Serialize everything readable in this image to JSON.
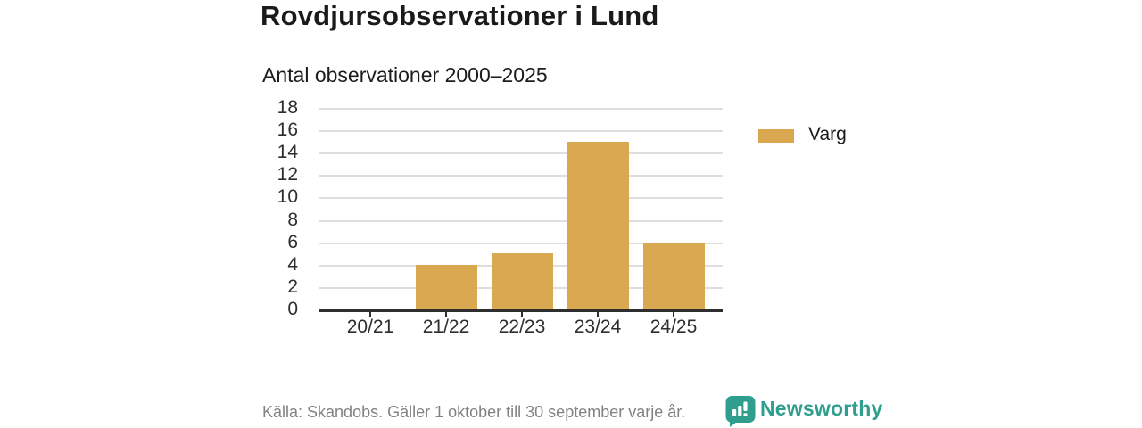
{
  "header": {
    "title": "Rovdjursobservationer i Lund",
    "subtitle": "Antal observationer 2000–2025"
  },
  "chart_data": {
    "type": "bar",
    "categories": [
      "20/21",
      "21/22",
      "22/23",
      "23/24",
      "24/25"
    ],
    "series": [
      {
        "name": "Varg",
        "values": [
          0,
          4,
          5,
          15,
          6
        ]
      }
    ],
    "title": "Rovdjursobservationer i Lund",
    "subtitle": "Antal observationer 2000–2025",
    "xlabel": "",
    "ylabel": "",
    "ylim": [
      0,
      18
    ],
    "ytick_step": 2,
    "grid": true,
    "legend_position": "right",
    "bar_color": "#d9a850"
  },
  "footer": {
    "source": "Källa: Skandobs. Gäller 1 oktober till 30 september varje år.",
    "brand": "Newsworthy"
  },
  "colors": {
    "bar": "#d9a850",
    "brand_teal": "#2f9e8f",
    "text_dark": "#1a1a1a",
    "text_gray": "#828282",
    "gridline": "#dedede",
    "axis": "#2e2e2e"
  },
  "icons": {
    "brand_logo": "newsworthy-speech-bubble-bar-chart-icon"
  }
}
